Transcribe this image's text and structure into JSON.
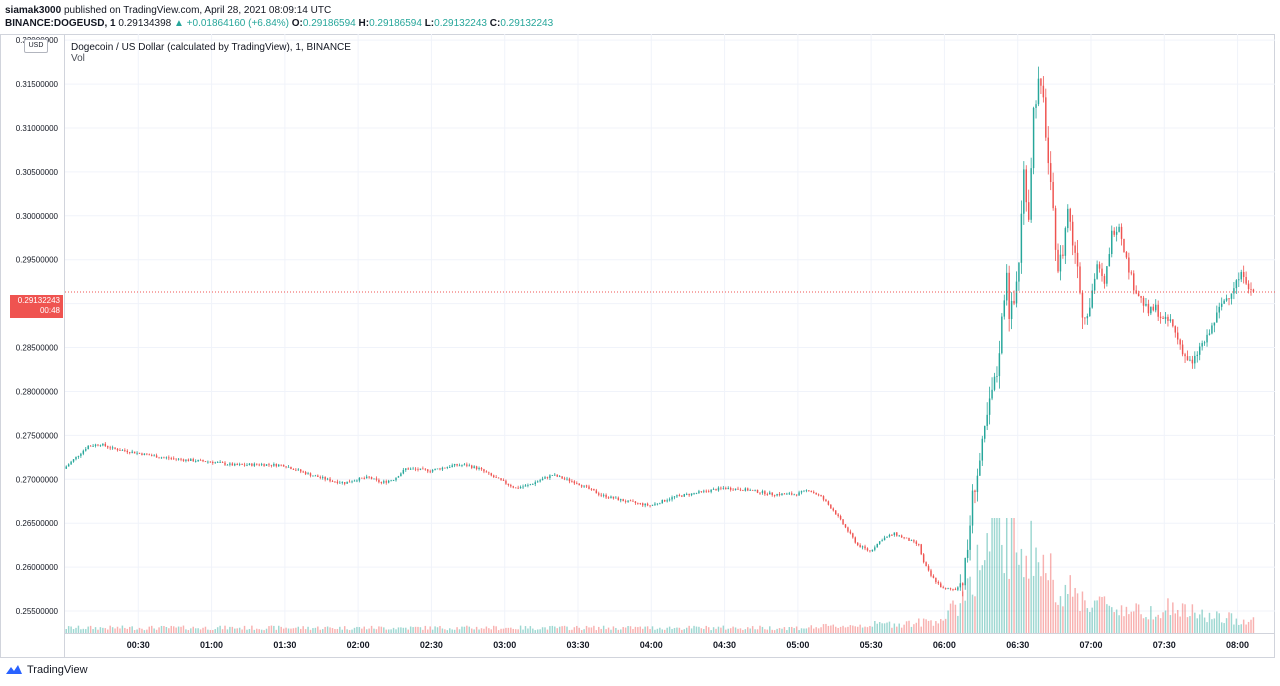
{
  "header": {
    "publisher": "siamak3000",
    "published_text": "published on TradingView.com, April 28, 2021 08:09:14 UTC",
    "symbol": "BINANCE:DOGEUSD, 1",
    "last_price": "0.29134398",
    "change_arrow": "▲",
    "change_text": "+0.01864160 (+6.84%)",
    "o_label": "O:",
    "o_value": "0.29186594",
    "h_label": "H:",
    "h_value": "0.29186594",
    "l_label": "L:",
    "l_value": "0.29132243",
    "c_label": "C:",
    "c_value": "0.29132243"
  },
  "legend": {
    "title": "Dogecoin / US Dollar (calculated by TradingView), 1, BINANCE",
    "vol_label": "Vol"
  },
  "currency_badge": "USD",
  "price_tag": {
    "price": "0.29132243",
    "countdown": "00:48"
  },
  "footer": {
    "brand": "TradingView"
  },
  "colors": {
    "up": "#26a69a",
    "down": "#ef5350",
    "grid": "#f0f3fa",
    "axis_text": "#131722"
  },
  "chart_data": {
    "type": "candlestick",
    "y_ticks": [
      "0.32000000",
      "0.31500000",
      "0.31000000",
      "0.30500000",
      "0.30000000",
      "0.29500000",
      "0.29000000",
      "0.28500000",
      "0.28000000",
      "0.27500000",
      "0.27000000",
      "0.26500000",
      "0.26000000",
      "0.25500000"
    ],
    "ylim": [
      0.2525,
      0.3207
    ],
    "x_ticks": [
      "00:30",
      "01:00",
      "01:30",
      "02:00",
      "02:30",
      "03:00",
      "03:30",
      "04:00",
      "04:30",
      "05:00",
      "05:30",
      "06:00",
      "06:30",
      "07:00",
      "07:30",
      "08:00"
    ],
    "x_tick_minutes": [
      30,
      60,
      90,
      120,
      150,
      180,
      210,
      240,
      270,
      300,
      330,
      360,
      390,
      420,
      450,
      480
    ],
    "xlim_minutes": [
      0,
      490
    ],
    "current_price": 0.29132243,
    "price_path": [
      [
        0,
        0.2712
      ],
      [
        5,
        0.2725
      ],
      [
        10,
        0.2738
      ],
      [
        15,
        0.274
      ],
      [
        20,
        0.2735
      ],
      [
        30,
        0.273
      ],
      [
        40,
        0.2725
      ],
      [
        50,
        0.2722
      ],
      [
        60,
        0.272
      ],
      [
        70,
        0.2716
      ],
      [
        80,
        0.2717
      ],
      [
        90,
        0.2716
      ],
      [
        100,
        0.2706
      ],
      [
        110,
        0.2698
      ],
      [
        115,
        0.2696
      ],
      [
        120,
        0.27
      ],
      [
        125,
        0.2702
      ],
      [
        130,
        0.2696
      ],
      [
        135,
        0.27
      ],
      [
        140,
        0.2712
      ],
      [
        150,
        0.271
      ],
      [
        160,
        0.2716
      ],
      [
        165,
        0.2716
      ],
      [
        170,
        0.2712
      ],
      [
        175,
        0.2704
      ],
      [
        180,
        0.2697
      ],
      [
        185,
        0.269
      ],
      [
        190,
        0.2693
      ],
      [
        200,
        0.2705
      ],
      [
        210,
        0.2696
      ],
      [
        220,
        0.2682
      ],
      [
        230,
        0.2675
      ],
      [
        240,
        0.267
      ],
      [
        250,
        0.268
      ],
      [
        260,
        0.2685
      ],
      [
        270,
        0.269
      ],
      [
        280,
        0.2688
      ],
      [
        290,
        0.2683
      ],
      [
        300,
        0.2683
      ],
      [
        305,
        0.2688
      ],
      [
        310,
        0.268
      ],
      [
        315,
        0.2665
      ],
      [
        320,
        0.2645
      ],
      [
        325,
        0.2625
      ],
      [
        330,
        0.2618
      ],
      [
        335,
        0.2632
      ],
      [
        340,
        0.2638
      ],
      [
        345,
        0.2632
      ],
      [
        350,
        0.2625
      ],
      [
        352,
        0.2605
      ],
      [
        355,
        0.259
      ],
      [
        360,
        0.2575
      ],
      [
        365,
        0.2575
      ],
      [
        368,
        0.2585
      ],
      [
        370,
        0.262
      ],
      [
        372,
        0.268
      ],
      [
        375,
        0.272
      ],
      [
        378,
        0.277
      ],
      [
        380,
        0.28
      ],
      [
        382,
        0.282
      ],
      [
        384,
        0.288
      ],
      [
        386,
        0.294
      ],
      [
        387,
        0.289
      ],
      [
        389,
        0.29
      ],
      [
        391,
        0.295
      ],
      [
        393,
        0.305
      ],
      [
        395,
        0.3
      ],
      [
        397,
        0.312
      ],
      [
        399,
        0.315
      ],
      [
        401,
        0.313
      ],
      [
        403,
        0.306
      ],
      [
        405,
        0.3
      ],
      [
        407,
        0.294
      ],
      [
        409,
        0.296
      ],
      [
        411,
        0.301
      ],
      [
        413,
        0.297
      ],
      [
        415,
        0.295
      ],
      [
        417,
        0.2885
      ],
      [
        420,
        0.29
      ],
      [
        423,
        0.2945
      ],
      [
        426,
        0.292
      ],
      [
        429,
        0.298
      ],
      [
        432,
        0.299
      ],
      [
        435,
        0.295
      ],
      [
        438,
        0.292
      ],
      [
        441,
        0.2905
      ],
      [
        444,
        0.289
      ],
      [
        447,
        0.2895
      ],
      [
        450,
        0.288
      ],
      [
        453,
        0.288
      ],
      [
        456,
        0.286
      ],
      [
        459,
        0.284
      ],
      [
        462,
        0.283
      ],
      [
        465,
        0.285
      ],
      [
        468,
        0.286
      ],
      [
        471,
        0.288
      ],
      [
        474,
        0.29
      ],
      [
        477,
        0.291
      ],
      [
        480,
        0.2925
      ],
      [
        483,
        0.2935
      ],
      [
        486,
        0.2913
      ]
    ],
    "volume_path": [
      [
        0,
        0.05
      ],
      [
        120,
        0.05
      ],
      [
        200,
        0.05
      ],
      [
        300,
        0.05
      ],
      [
        330,
        0.08
      ],
      [
        350,
        0.1
      ],
      [
        360,
        0.15
      ],
      [
        366,
        0.3
      ],
      [
        370,
        0.55
      ],
      [
        375,
        0.7
      ],
      [
        380,
        0.9
      ],
      [
        385,
        0.95
      ],
      [
        390,
        0.9
      ],
      [
        395,
        0.8
      ],
      [
        400,
        0.65
      ],
      [
        405,
        0.5
      ],
      [
        410,
        0.4
      ],
      [
        420,
        0.3
      ],
      [
        430,
        0.25
      ],
      [
        440,
        0.2
      ],
      [
        450,
        0.25
      ],
      [
        460,
        0.2
      ],
      [
        470,
        0.15
      ],
      [
        486,
        0.12
      ]
    ]
  }
}
